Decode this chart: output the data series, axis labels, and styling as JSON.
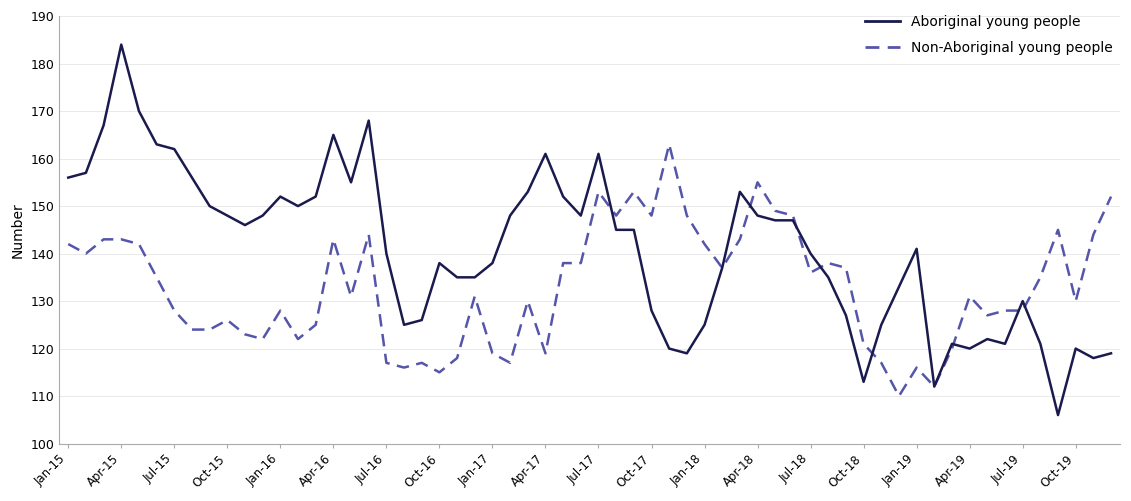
{
  "ylabel": "Number",
  "ylim": [
    100,
    190
  ],
  "yticks": [
    100,
    110,
    120,
    130,
    140,
    150,
    160,
    170,
    180,
    190
  ],
  "aboriginal_color": "#1a1a4e",
  "non_aboriginal_color": "#5555aa",
  "aboriginal_label": "Aboriginal young people",
  "non_aboriginal_label": "Non-Aboriginal young people",
  "x_labels": [
    "Jan-15",
    "Apr-15",
    "Jul-15",
    "Oct-15",
    "Jan-16",
    "Apr-16",
    "Jul-16",
    "Oct-16",
    "Jan-17",
    "Apr-17",
    "Jul-17",
    "Oct-17",
    "Jan-18",
    "Apr-18",
    "Jul-18",
    "Oct-18",
    "Jan-19",
    "Apr-19",
    "Jul-19",
    "Oct-19"
  ],
  "aboriginal_months": [
    156,
    157,
    167,
    184,
    170,
    163,
    162,
    156,
    150,
    148,
    146,
    148,
    152,
    150,
    152,
    165,
    155,
    168,
    140,
    125,
    126,
    138,
    135,
    135,
    138,
    148,
    153,
    161,
    152,
    148,
    161,
    145,
    145,
    128,
    120,
    119,
    125,
    137,
    153,
    148,
    147,
    147,
    140,
    135,
    127,
    113,
    125,
    133,
    141,
    112,
    121,
    120,
    122,
    121,
    130,
    121,
    106,
    120,
    118,
    119
  ],
  "non_aboriginal_months": [
    142,
    140,
    143,
    143,
    142,
    135,
    128,
    124,
    124,
    126,
    123,
    122,
    128,
    122,
    125,
    143,
    131,
    144,
    117,
    116,
    117,
    115,
    118,
    131,
    119,
    117,
    130,
    119,
    138,
    138,
    153,
    148,
    153,
    148,
    163,
    148,
    142,
    137,
    143,
    155,
    149,
    148,
    136,
    138,
    137,
    121,
    117,
    110,
    116,
    112,
    120,
    131,
    127,
    128,
    128,
    135,
    145,
    130,
    144,
    152
  ]
}
